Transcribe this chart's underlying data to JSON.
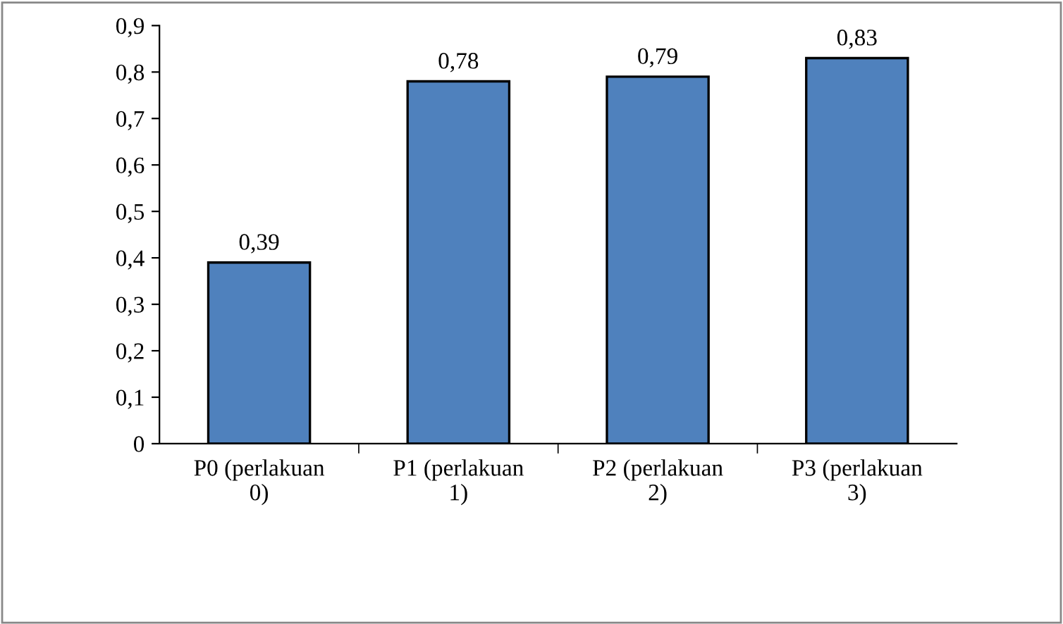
{
  "chart_data": {
    "type": "bar",
    "categories": [
      "P0 (perlakuan 0)",
      "P1 (perlakuan 1)",
      "P2 (perlakuan 2)",
      "P3 (perlakuan 3)"
    ],
    "values": [
      0.39,
      0.78,
      0.79,
      0.83
    ],
    "value_labels": [
      "0,39",
      "0,78",
      "0,79",
      "0,83"
    ],
    "color": "#4f81bd",
    "ylim": [
      0,
      0.9
    ],
    "yticks": [
      {
        "value": 0,
        "label": "0"
      },
      {
        "value": 0.1,
        "label": "0,1"
      },
      {
        "value": 0.2,
        "label": "0,2"
      },
      {
        "value": 0.3,
        "label": "0,3"
      },
      {
        "value": 0.4,
        "label": "0,4"
      },
      {
        "value": 0.5,
        "label": "0,5"
      },
      {
        "value": 0.6,
        "label": "0,6"
      },
      {
        "value": 0.7,
        "label": "0,7"
      },
      {
        "value": 0.8,
        "label": "0,8"
      },
      {
        "value": 0.9,
        "label": "0,9"
      }
    ],
    "grid": false,
    "legend": false
  }
}
